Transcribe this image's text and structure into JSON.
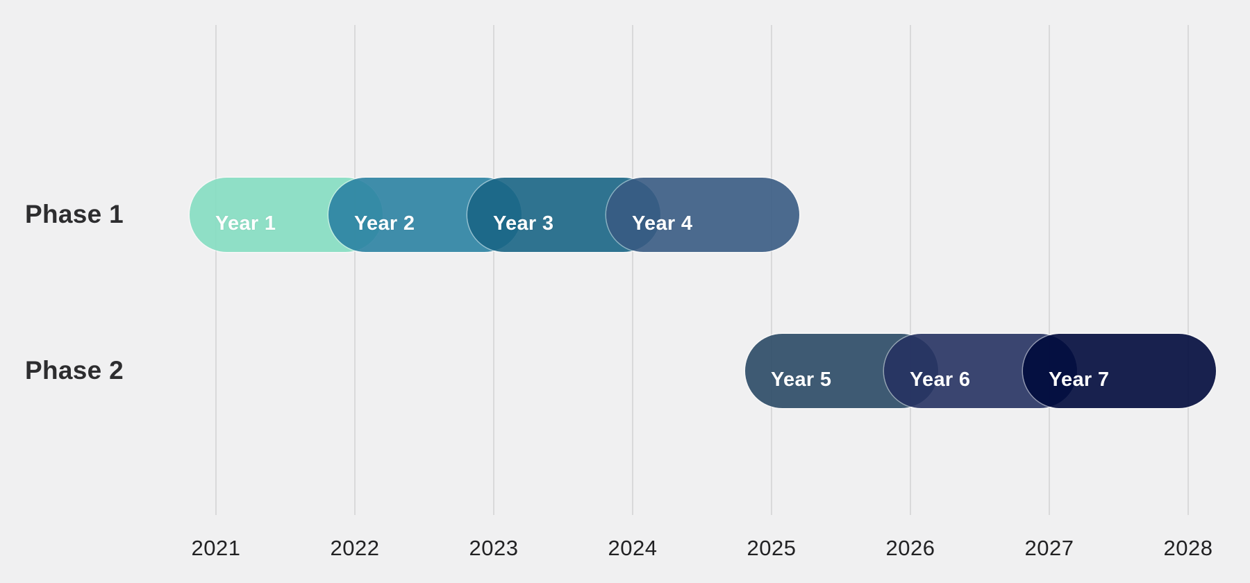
{
  "chart_data": {
    "type": "gantt",
    "title": "",
    "xlabel": "",
    "ylabel": "",
    "grid": true,
    "legend": false,
    "x_axis": {
      "ticks": [
        "2021",
        "2022",
        "2023",
        "2024",
        "2025",
        "2026",
        "2027",
        "2028"
      ],
      "tick_values": [
        2021,
        2022,
        2023,
        2024,
        2025,
        2026,
        2027,
        2028
      ],
      "range": [
        2020.6,
        2028.45
      ]
    },
    "rows": [
      {
        "label": "Phase 1"
      },
      {
        "label": "Phase 2"
      }
    ],
    "bars": [
      {
        "label": "Year 1",
        "row": 0,
        "start": 2020.81,
        "end": 2022.2,
        "fill": "rgba(132,221,193,0.9)",
        "rendered_color": "#8FDFC6"
      },
      {
        "label": "Year 2",
        "row": 0,
        "start": 2021.81,
        "end": 2023.2,
        "fill": "rgba(43,130,162,0.9)",
        "rendered_color": "#3F8DAA"
      },
      {
        "label": "Year 3",
        "row": 0,
        "start": 2022.81,
        "end": 2024.2,
        "fill": "rgba(26,101,133,0.9)",
        "rendered_color": "#2F7390"
      },
      {
        "label": "Year 4",
        "row": 0,
        "start": 2023.81,
        "end": 2025.2,
        "fill": "rgba(56,91,131,0.9)",
        "rendered_color": "#4A6A8E"
      },
      {
        "label": "Year 5",
        "row": 1,
        "start": 2024.81,
        "end": 2026.2,
        "fill": "rgba(42,73,101,0.9)",
        "rendered_color": "#3E5A73"
      },
      {
        "label": "Year 6",
        "row": 1,
        "start": 2025.81,
        "end": 2027.2,
        "fill": "rgba(38,50,98,0.9)",
        "rendered_color": "#3A4570"
      },
      {
        "label": "Year 7",
        "row": 1,
        "start": 2026.81,
        "end": 2028.2,
        "fill": "rgba(0,10,60,0.9)",
        "rendered_color": "#16214E"
      }
    ],
    "colors": {
      "background": "#f0f0f1",
      "gridline": "#d9d9da",
      "axis_text": "#212123",
      "phase_text": "#2d2d2f",
      "bar_text": "#ffffff"
    }
  }
}
